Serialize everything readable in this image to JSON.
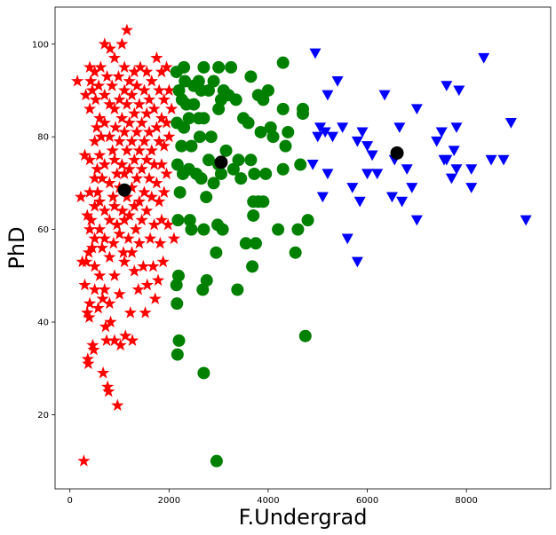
{
  "chart_data": {
    "type": "scatter",
    "title": "",
    "xlabel": "F.Undergrad",
    "ylabel": "PhD",
    "xlim": [
      -300,
      9700
    ],
    "ylim": [
      4,
      108
    ],
    "xticks": [
      0,
      2000,
      4000,
      6000,
      8000
    ],
    "xtick_labels": [
      "0",
      "2000",
      "4000",
      "6000",
      "8000"
    ],
    "yticks": [
      20,
      40,
      60,
      80,
      100
    ],
    "ytick_labels": [
      "20",
      "40",
      "60",
      "80",
      "100"
    ],
    "grid": false,
    "legend": "none",
    "series": [
      {
        "marker": "star",
        "color": "#ff0000",
        "points": [
          [
            150,
            92
          ],
          [
            220,
            67
          ],
          [
            250,
            53
          ],
          [
            280,
            10
          ],
          [
            300,
            76
          ],
          [
            300,
            48
          ],
          [
            320,
            89
          ],
          [
            330,
            53
          ],
          [
            350,
            63
          ],
          [
            350,
            42
          ],
          [
            360,
            32
          ],
          [
            370,
            31
          ],
          [
            380,
            55
          ],
          [
            390,
            41
          ],
          [
            400,
            95
          ],
          [
            400,
            86
          ],
          [
            400,
            75
          ],
          [
            400,
            68
          ],
          [
            400,
            60
          ],
          [
            400,
            44
          ],
          [
            420,
            92
          ],
          [
            430,
            62
          ],
          [
            450,
            90
          ],
          [
            450,
            56
          ],
          [
            460,
            35
          ],
          [
            480,
            34
          ],
          [
            500,
            94
          ],
          [
            500,
            79
          ],
          [
            500,
            71
          ],
          [
            500,
            65
          ],
          [
            500,
            58
          ],
          [
            500,
            52
          ],
          [
            500,
            47
          ],
          [
            520,
            88
          ],
          [
            540,
            82
          ],
          [
            550,
            73
          ],
          [
            560,
            68
          ],
          [
            570,
            43
          ],
          [
            580,
            91
          ],
          [
            600,
            84
          ],
          [
            600,
            76
          ],
          [
            600,
            66
          ],
          [
            600,
            60
          ],
          [
            600,
            50
          ],
          [
            620,
            95
          ],
          [
            630,
            80
          ],
          [
            650,
            71
          ],
          [
            650,
            56
          ],
          [
            660,
            45
          ],
          [
            670,
            29
          ],
          [
            700,
            100
          ],
          [
            700,
            89
          ],
          [
            700,
            83
          ],
          [
            700,
            74
          ],
          [
            700,
            64
          ],
          [
            700,
            58
          ],
          [
            700,
            47
          ],
          [
            720,
            39
          ],
          [
            740,
            36
          ],
          [
            750,
            93
          ],
          [
            760,
            26
          ],
          [
            780,
            25
          ],
          [
            800,
            87
          ],
          [
            800,
            80
          ],
          [
            800,
            70
          ],
          [
            800,
            62
          ],
          [
            800,
            54
          ],
          [
            800,
            44
          ],
          [
            810,
            99
          ],
          [
            820,
            40
          ],
          [
            850,
            91
          ],
          [
            860,
            77
          ],
          [
            870,
            67
          ],
          [
            880,
            57
          ],
          [
            900,
            97
          ],
          [
            900,
            86
          ],
          [
            900,
            75
          ],
          [
            900,
            65
          ],
          [
            900,
            50
          ],
          [
            900,
            36
          ],
          [
            920,
            82
          ],
          [
            950,
            72
          ],
          [
            950,
            61
          ],
          [
            960,
            22
          ],
          [
            980,
            93
          ],
          [
            1000,
            88
          ],
          [
            1000,
            79
          ],
          [
            1000,
            69
          ],
          [
            1000,
            59
          ],
          [
            1000,
            46
          ],
          [
            1020,
            35
          ],
          [
            1050,
            100
          ],
          [
            1050,
            84
          ],
          [
            1050,
            74
          ],
          [
            1060,
            64
          ],
          [
            1080,
            55
          ],
          [
            1100,
            95
          ],
          [
            1100,
            90
          ],
          [
            1100,
            81
          ],
          [
            1100,
            72
          ],
          [
            1100,
            62
          ],
          [
            1100,
            53
          ],
          [
            1120,
            37
          ],
          [
            1150,
            103
          ],
          [
            1150,
            87
          ],
          [
            1150,
            77
          ],
          [
            1150,
            67
          ],
          [
            1180,
            58
          ],
          [
            1200,
            92
          ],
          [
            1200,
            83
          ],
          [
            1200,
            73
          ],
          [
            1200,
            63
          ],
          [
            1220,
            42
          ],
          [
            1250,
            89
          ],
          [
            1250,
            79
          ],
          [
            1250,
            69
          ],
          [
            1250,
            55
          ],
          [
            1260,
            36
          ],
          [
            1300,
            94
          ],
          [
            1300,
            85
          ],
          [
            1300,
            75
          ],
          [
            1300,
            65
          ],
          [
            1300,
            51
          ],
          [
            1330,
            60
          ],
          [
            1350,
            91
          ],
          [
            1350,
            81
          ],
          [
            1350,
            71
          ],
          [
            1380,
            47
          ],
          [
            1400,
            87
          ],
          [
            1400,
            77
          ],
          [
            1400,
            66
          ],
          [
            1400,
            57
          ],
          [
            1420,
            95
          ],
          [
            1450,
            83
          ],
          [
            1450,
            73
          ],
          [
            1450,
            62
          ],
          [
            1480,
            52
          ],
          [
            1500,
            90
          ],
          [
            1500,
            79
          ],
          [
            1500,
            68
          ],
          [
            1520,
            42
          ],
          [
            1550,
            94
          ],
          [
            1550,
            85
          ],
          [
            1550,
            75
          ],
          [
            1550,
            64
          ],
          [
            1560,
            48
          ],
          [
            1600,
            88
          ],
          [
            1600,
            81
          ],
          [
            1600,
            71
          ],
          [
            1620,
            58
          ],
          [
            1650,
            92
          ],
          [
            1650,
            77
          ],
          [
            1650,
            67
          ],
          [
            1680,
            52
          ],
          [
            1700,
            86
          ],
          [
            1700,
            74
          ],
          [
            1700,
            61
          ],
          [
            1720,
            45
          ],
          [
            1750,
            97
          ],
          [
            1750,
            82
          ],
          [
            1750,
            70
          ],
          [
            1780,
            49
          ],
          [
            1800,
            90
          ],
          [
            1800,
            79
          ],
          [
            1800,
            66
          ],
          [
            1820,
            57
          ],
          [
            1850,
            94
          ],
          [
            1850,
            84
          ],
          [
            1850,
            74
          ],
          [
            1850,
            62
          ],
          [
            1880,
            53
          ],
          [
            1900,
            88
          ],
          [
            1900,
            78
          ],
          [
            1900,
            68
          ],
          [
            1950,
            95
          ],
          [
            1950,
            83
          ],
          [
            1950,
            72
          ],
          [
            1980,
            61
          ],
          [
            2000,
            90
          ],
          [
            2000,
            80
          ],
          [
            2050,
            86
          ],
          [
            2100,
            58
          ]
        ]
      },
      {
        "marker": "circle",
        "color": "#008000",
        "points": [
          [
            2150,
            94
          ],
          [
            2160,
            83
          ],
          [
            2170,
            74
          ],
          [
            2180,
            62
          ],
          [
            2190,
            50
          ],
          [
            2150,
            48
          ],
          [
            2160,
            44
          ],
          [
            2170,
            33
          ],
          [
            2200,
            36
          ],
          [
            2200,
            90
          ],
          [
            2220,
            68
          ],
          [
            2250,
            78
          ],
          [
            2260,
            88
          ],
          [
            2280,
            72
          ],
          [
            2300,
            95
          ],
          [
            2300,
            82
          ],
          [
            2320,
            92
          ],
          [
            2350,
            87
          ],
          [
            2400,
            84
          ],
          [
            2400,
            73
          ],
          [
            2420,
            62
          ],
          [
            2450,
            60
          ],
          [
            2450,
            78
          ],
          [
            2500,
            91
          ],
          [
            2500,
            87
          ],
          [
            2550,
            72
          ],
          [
            2600,
            92
          ],
          [
            2600,
            84
          ],
          [
            2620,
            80
          ],
          [
            2650,
            90
          ],
          [
            2650,
            71
          ],
          [
            2680,
            47
          ],
          [
            2700,
            95
          ],
          [
            2700,
            84
          ],
          [
            2700,
            60
          ],
          [
            2700,
            29
          ],
          [
            2750,
            67
          ],
          [
            2760,
            49
          ],
          [
            2800,
            90
          ],
          [
            2800,
            75
          ],
          [
            2850,
            80
          ],
          [
            2900,
            92
          ],
          [
            2900,
            70
          ],
          [
            2950,
            55
          ],
          [
            2960,
            10
          ],
          [
            2980,
            61
          ],
          [
            3000,
            95
          ],
          [
            3000,
            86
          ],
          [
            3000,
            74
          ],
          [
            3050,
            88
          ],
          [
            3050,
            72
          ],
          [
            3080,
            60
          ],
          [
            3100,
            90
          ],
          [
            3150,
            77
          ],
          [
            3200,
            89
          ],
          [
            3250,
            95
          ],
          [
            3300,
            73
          ],
          [
            3350,
            88
          ],
          [
            3380,
            47
          ],
          [
            3400,
            75
          ],
          [
            3450,
            71
          ],
          [
            3500,
            84
          ],
          [
            3550,
            57
          ],
          [
            3600,
            83
          ],
          [
            3650,
            93
          ],
          [
            3650,
            75
          ],
          [
            3680,
            52
          ],
          [
            3700,
            66
          ],
          [
            3700,
            63
          ],
          [
            3720,
            72
          ],
          [
            3750,
            57
          ],
          [
            3800,
            89
          ],
          [
            3800,
            66
          ],
          [
            3850,
            81
          ],
          [
            3900,
            88
          ],
          [
            3900,
            66
          ],
          [
            3950,
            72
          ],
          [
            4000,
            90
          ],
          [
            4050,
            82
          ],
          [
            4100,
            80
          ],
          [
            4200,
            60
          ],
          [
            4300,
            96
          ],
          [
            4300,
            86
          ],
          [
            4300,
            73
          ],
          [
            4350,
            78
          ],
          [
            4400,
            81
          ],
          [
            4550,
            55
          ],
          [
            4600,
            60
          ],
          [
            4650,
            74
          ],
          [
            4700,
            86
          ],
          [
            4700,
            85
          ],
          [
            4750,
            37
          ],
          [
            4800,
            62
          ]
        ]
      },
      {
        "marker": "triangle-down",
        "color": "#0000ff",
        "points": [
          [
            4950,
            98
          ],
          [
            4900,
            74
          ],
          [
            5000,
            80
          ],
          [
            5050,
            82
          ],
          [
            5100,
            67
          ],
          [
            5150,
            81
          ],
          [
            5200,
            72
          ],
          [
            5200,
            89
          ],
          [
            5300,
            80
          ],
          [
            5400,
            92
          ],
          [
            5500,
            82
          ],
          [
            5600,
            58
          ],
          [
            5700,
            69
          ],
          [
            5800,
            79
          ],
          [
            5800,
            53
          ],
          [
            5850,
            66
          ],
          [
            5900,
            81
          ],
          [
            6000,
            72
          ],
          [
            6000,
            78
          ],
          [
            6100,
            76
          ],
          [
            6200,
            72
          ],
          [
            6350,
            89
          ],
          [
            6500,
            67
          ],
          [
            6550,
            75
          ],
          [
            6650,
            82
          ],
          [
            6700,
            66
          ],
          [
            6800,
            73
          ],
          [
            6900,
            69
          ],
          [
            7000,
            86
          ],
          [
            7000,
            62
          ],
          [
            7400,
            79
          ],
          [
            7500,
            81
          ],
          [
            7550,
            75
          ],
          [
            7600,
            91
          ],
          [
            7600,
            75
          ],
          [
            7700,
            71
          ],
          [
            7750,
            77
          ],
          [
            7800,
            82
          ],
          [
            7800,
            73
          ],
          [
            7850,
            90
          ],
          [
            8100,
            73
          ],
          [
            8100,
            69
          ],
          [
            8350,
            97
          ],
          [
            8500,
            75
          ],
          [
            8750,
            75
          ],
          [
            8900,
            83
          ],
          [
            9200,
            62
          ]
        ]
      },
      {
        "marker": "circle",
        "color": "#000000",
        "name": "",
        "points": [
          [
            1100,
            68.5
          ],
          [
            3050,
            74.5
          ],
          [
            6600,
            76.5
          ]
        ]
      }
    ]
  }
}
